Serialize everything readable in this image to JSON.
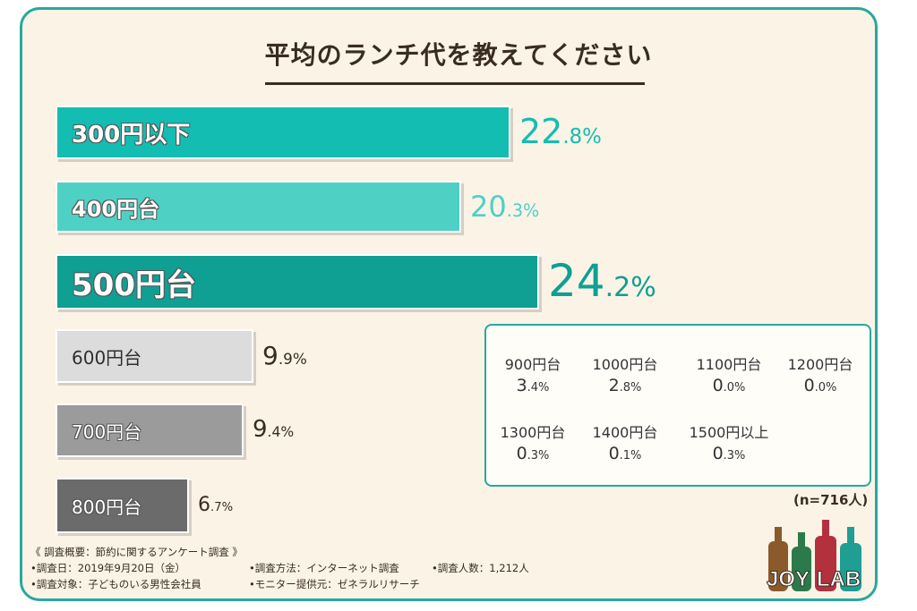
{
  "chart_data": {
    "type": "bar",
    "orientation": "horizontal",
    "title": "平均のランチ代を教えてください",
    "categories": [
      "300円以下",
      "400円台",
      "500円台",
      "600円台",
      "700円台",
      "800円台"
    ],
    "values": [
      22.8,
      20.3,
      24.2,
      9.9,
      9.4,
      6.7
    ],
    "value_labels": [
      {
        "main": "22",
        "sub": ".8%"
      },
      {
        "main": "20",
        "sub": ".3%"
      },
      {
        "main": "24",
        "sub": ".2%"
      },
      {
        "main": "9",
        "sub": ".9%"
      },
      {
        "main": "9",
        "sub": ".4%"
      },
      {
        "main": "6",
        "sub": ".7%"
      }
    ],
    "colors": [
      "#14bdb1",
      "#4fd0c5",
      "#0f9f93",
      "#dcdcdc",
      "#9b9b9b",
      "#6b6b6b"
    ],
    "unit": "%",
    "other_categories": [
      {
        "label": "900円台",
        "main": "3",
        "sub": ".4%",
        "value": 3.4
      },
      {
        "label": "1000円台",
        "main": "2",
        "sub": ".8%",
        "value": 2.8
      },
      {
        "label": "1100円台",
        "main": "0",
        "sub": ".0%",
        "value": 0.0
      },
      {
        "label": "1200円台",
        "main": "0",
        "sub": ".0%",
        "value": 0.0
      },
      {
        "label": "1300円台",
        "main": "0",
        "sub": ".3%",
        "value": 0.3
      },
      {
        "label": "1400円台",
        "main": "0",
        "sub": ".1%",
        "value": 0.1
      },
      {
        "label": "1500円以上",
        "main": "0",
        "sub": ".3%",
        "value": 0.3
      }
    ],
    "sample_note": "(n=716人)"
  },
  "survey": {
    "heading": "《 調査概要：節約に関するアンケート調査 》",
    "date": "•調査日：2019年9月20日（金）",
    "method": "•調査方法：インターネット調査",
    "count": "•調査人数：1,212人",
    "target": "•調査対象：子どものいる男性会社員",
    "provider": "•モニター提供元：ゼネラルリサーチ"
  },
  "logo": {
    "left": "JOY",
    "right": "LAB"
  },
  "colors": {
    "accent": "#26a99c",
    "background": "#fbf3e6",
    "text": "#3a2c22"
  }
}
